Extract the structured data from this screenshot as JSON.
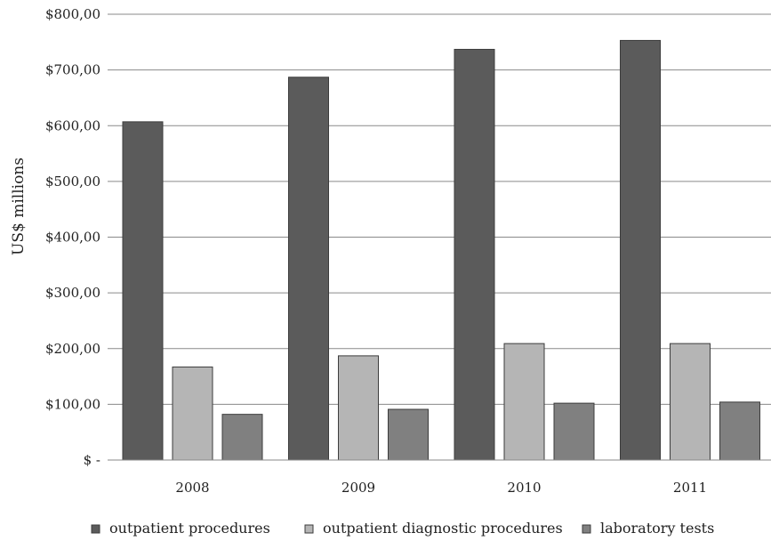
{
  "chart_data": {
    "type": "bar",
    "title": "",
    "xlabel": "",
    "ylabel": "US$ millions",
    "categories": [
      "2008",
      "2009",
      "2010",
      "2011"
    ],
    "series": [
      {
        "name": "outpatient procedures",
        "color": "#5b5b5b",
        "values": [
          607,
          687,
          737,
          753
        ]
      },
      {
        "name": "outpatient diagnostic procedures",
        "color": "#b5b5b5",
        "values": [
          167,
          187,
          209,
          209
        ]
      },
      {
        "name": "laboratory tests",
        "color": "#808080",
        "values": [
          82,
          91,
          102,
          104
        ]
      }
    ],
    "ylim": [
      0,
      800
    ],
    "yticks": [
      0,
      100,
      200,
      300,
      400,
      500,
      600,
      700,
      800
    ],
    "ytick_labels": [
      "$ -",
      "$100,00",
      "$200,00",
      "$300,00",
      "$400,00",
      "$500,00",
      "$600,00",
      "$700,00",
      "$800,00"
    ],
    "grid": true,
    "legend_position": "bottom"
  }
}
